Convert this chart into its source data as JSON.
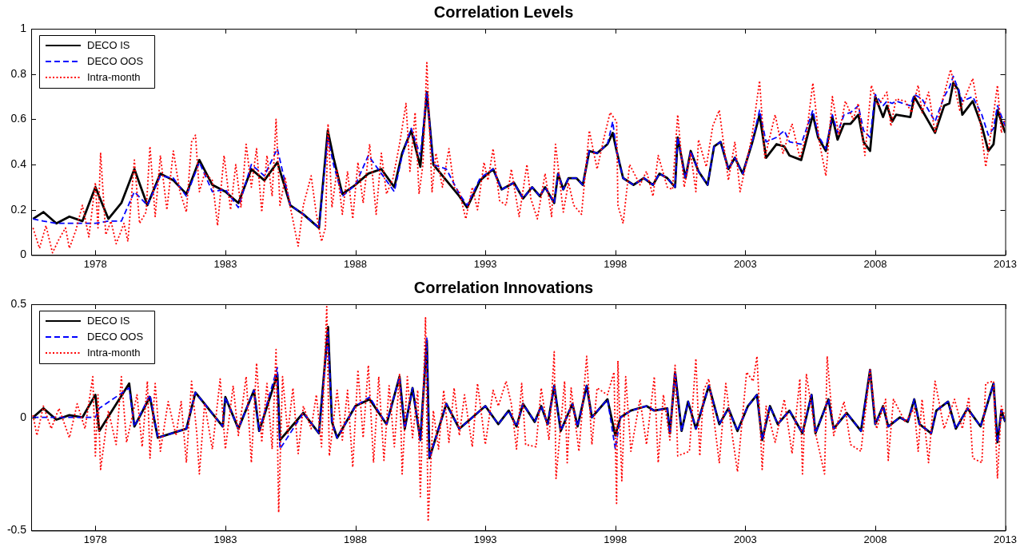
{
  "chart_data": [
    {
      "type": "line",
      "title": "Correlation Levels",
      "legend": "top left",
      "xlim": [
        1975.53,
        2013
      ],
      "xticks": [
        1978,
        1983,
        1988,
        1993,
        1998,
        2003,
        2008,
        2013
      ],
      "ylim": [
        0,
        1
      ],
      "yticks": [
        0,
        0.2,
        0.4,
        0.6,
        0.8,
        1
      ],
      "x": [
        1975.6,
        1976.0,
        1976.5,
        1977.0,
        1977.5,
        1978.0,
        1978.5,
        1979.0,
        1979.5,
        1980.0,
        1980.5,
        1981.0,
        1981.5,
        1982.0,
        1982.5,
        1983.0,
        1983.5,
        1984.0,
        1984.5,
        1985.0,
        1985.5,
        1986.0,
        1986.6,
        1986.94,
        1987.16,
        1987.5,
        1988.0,
        1988.5,
        1989.0,
        1989.5,
        1989.8,
        1990.15,
        1990.5,
        1990.75,
        1991.0,
        1991.5,
        1992.0,
        1992.3,
        1992.8,
        1993.3,
        1993.63,
        1994.1,
        1994.45,
        1994.8,
        1995.1,
        1995.3,
        1995.65,
        1995.8,
        1996.0,
        1996.2,
        1996.5,
        1996.75,
        1997.0,
        1997.3,
        1997.7,
        1997.9,
        1998.05,
        1998.3,
        1998.7,
        1999.1,
        1999.45,
        1999.7,
        2000.0,
        2000.3,
        2000.4,
        2000.7,
        2000.9,
        2001.2,
        2001.55,
        2001.8,
        2002.05,
        2002.35,
        2002.6,
        2002.9,
        2003.25,
        2003.55,
        2003.8,
        2004.2,
        2004.5,
        2004.7,
        2005.15,
        2005.6,
        2005.8,
        2006.1,
        2006.35,
        2006.55,
        2006.8,
        2007.05,
        2007.35,
        2007.55,
        2007.8,
        2008.0,
        2008.3,
        2008.45,
        2008.65,
        2008.8,
        2009.35,
        2009.5,
        2009.8,
        2010.3,
        2010.65,
        2010.85,
        2011.0,
        2011.2,
        2011.35,
        2011.75,
        2012.1,
        2012.35,
        2012.55,
        2012.7,
        2013.0
      ],
      "series": [
        {
          "name": "DECO IS",
          "color": "#000000",
          "line_style": "solid",
          "values": [
            0.16,
            0.19,
            0.14,
            0.17,
            0.15,
            0.3,
            0.16,
            0.23,
            0.38,
            0.22,
            0.36,
            0.33,
            0.27,
            0.42,
            0.31,
            0.28,
            0.23,
            0.38,
            0.33,
            0.41,
            0.22,
            0.18,
            0.12,
            0.55,
            0.43,
            0.27,
            0.31,
            0.36,
            0.38,
            0.3,
            0.45,
            0.55,
            0.39,
            0.72,
            0.4,
            0.33,
            0.26,
            0.21,
            0.33,
            0.38,
            0.29,
            0.32,
            0.25,
            0.3,
            0.26,
            0.3,
            0.23,
            0.36,
            0.29,
            0.34,
            0.34,
            0.31,
            0.46,
            0.45,
            0.49,
            0.54,
            0.46,
            0.34,
            0.31,
            0.34,
            0.31,
            0.36,
            0.34,
            0.3,
            0.52,
            0.34,
            0.46,
            0.37,
            0.31,
            0.48,
            0.5,
            0.38,
            0.43,
            0.36,
            0.49,
            0.62,
            0.43,
            0.49,
            0.48,
            0.44,
            0.42,
            0.62,
            0.52,
            0.46,
            0.61,
            0.51,
            0.58,
            0.58,
            0.62,
            0.5,
            0.46,
            0.7,
            0.61,
            0.66,
            0.59,
            0.62,
            0.61,
            0.7,
            0.64,
            0.54,
            0.66,
            0.67,
            0.76,
            0.73,
            0.62,
            0.68,
            0.57,
            0.46,
            0.49,
            0.64,
            0.54
          ]
        },
        {
          "name": "DECO OOS",
          "color": "#0000ff",
          "line_style": "dashed",
          "values": [
            0.16,
            0.15,
            0.14,
            0.14,
            0.14,
            0.14,
            0.15,
            0.15,
            0.28,
            0.22,
            0.35,
            0.34,
            0.26,
            0.41,
            0.28,
            0.29,
            0.21,
            0.4,
            0.35,
            0.47,
            0.22,
            0.18,
            0.12,
            0.52,
            0.4,
            0.26,
            0.31,
            0.44,
            0.36,
            0.28,
            0.44,
            0.56,
            0.44,
            0.72,
            0.4,
            0.38,
            0.27,
            0.22,
            0.34,
            0.38,
            0.29,
            0.32,
            0.25,
            0.3,
            0.26,
            0.3,
            0.23,
            0.36,
            0.29,
            0.34,
            0.34,
            0.31,
            0.46,
            0.45,
            0.49,
            0.59,
            0.46,
            0.34,
            0.31,
            0.34,
            0.31,
            0.36,
            0.34,
            0.3,
            0.52,
            0.34,
            0.46,
            0.37,
            0.31,
            0.48,
            0.5,
            0.38,
            0.43,
            0.36,
            0.49,
            0.64,
            0.5,
            0.52,
            0.55,
            0.5,
            0.49,
            0.64,
            0.53,
            0.47,
            0.62,
            0.54,
            0.62,
            0.63,
            0.66,
            0.55,
            0.52,
            0.71,
            0.66,
            0.68,
            0.67,
            0.68,
            0.66,
            0.71,
            0.69,
            0.59,
            0.7,
            0.74,
            0.79,
            0.73,
            0.68,
            0.7,
            0.62,
            0.53,
            0.56,
            0.66,
            0.57
          ]
        },
        {
          "name": "Intra-month",
          "color": "#ff0000",
          "line_style": "dotted",
          "x": [
            1975.6,
            1975.85,
            1976.1,
            1976.35,
            1976.6,
            1976.85,
            1977.0,
            1977.25,
            1977.5,
            1977.75,
            1978.0,
            1978.1,
            1978.2,
            1978.4,
            1978.6,
            1978.8,
            1979.1,
            1979.25,
            1979.5,
            1979.7,
            1979.95,
            1980.1,
            1980.3,
            1980.5,
            1980.75,
            1981.0,
            1981.25,
            1981.5,
            1981.7,
            1981.85,
            1982.0,
            1982.2,
            1982.5,
            1982.7,
            1982.95,
            1983.2,
            1983.4,
            1983.6,
            1983.8,
            1984.0,
            1984.2,
            1984.4,
            1984.6,
            1984.8,
            1984.95,
            1985.1,
            1985.3,
            1985.5,
            1985.8,
            1986.0,
            1986.3,
            1986.5,
            1986.7,
            1986.85,
            1986.95,
            1987.1,
            1987.3,
            1987.5,
            1987.7,
            1987.9,
            1988.1,
            1988.3,
            1988.55,
            1988.8,
            1989.0,
            1989.2,
            1989.45,
            1989.7,
            1989.95,
            1990.1,
            1990.3,
            1990.45,
            1990.6,
            1990.75,
            1990.95,
            1991.1,
            1991.35,
            1991.6,
            1991.8,
            1992.0,
            1992.25,
            1992.5,
            1992.7,
            1992.95,
            1993.1,
            1993.3,
            1993.55,
            1993.8,
            1994.0,
            1994.3,
            1994.6,
            1994.75,
            1995.0,
            1995.3,
            1995.55,
            1995.7,
            1996.0,
            1996.2,
            1996.4,
            1996.7,
            1997.0,
            1997.3,
            1997.55,
            1997.8,
            1998.05,
            1998.1,
            1998.3,
            1998.55,
            1998.95,
            1999.2,
            1999.45,
            1999.65,
            2000.0,
            2000.2,
            2000.4,
            2000.65,
            2000.9,
            2001.1,
            2001.2,
            2001.5,
            2001.75,
            2002.0,
            2002.35,
            2002.6,
            2002.8,
            2003.25,
            2003.55,
            2003.75,
            2004.15,
            2004.45,
            2004.8,
            2005.1,
            2005.35,
            2005.6,
            2005.85,
            2006.1,
            2006.35,
            2006.6,
            2006.85,
            2007.15,
            2007.35,
            2007.6,
            2007.85,
            2008.1,
            2008.45,
            2008.6,
            2008.8,
            2009.15,
            2009.4,
            2009.65,
            2009.8,
            2010.05,
            2010.3,
            2010.6,
            2010.9,
            2011.25,
            2011.5,
            2011.75,
            2012.0,
            2012.25,
            2012.45,
            2012.7,
            2012.85,
            2013.0
          ],
          "values": [
            0.12,
            0.03,
            0.13,
            0.01,
            0.07,
            0.12,
            0.03,
            0.11,
            0.22,
            0.08,
            0.32,
            0.12,
            0.45,
            0.09,
            0.15,
            0.05,
            0.14,
            0.06,
            0.42,
            0.14,
            0.19,
            0.48,
            0.17,
            0.44,
            0.2,
            0.46,
            0.28,
            0.19,
            0.5,
            0.53,
            0.28,
            0.36,
            0.33,
            0.13,
            0.44,
            0.2,
            0.4,
            0.21,
            0.49,
            0.3,
            0.47,
            0.19,
            0.44,
            0.26,
            0.6,
            0.22,
            0.34,
            0.21,
            0.04,
            0.22,
            0.35,
            0.18,
            0.06,
            0.12,
            0.58,
            0.21,
            0.38,
            0.18,
            0.37,
            0.16,
            0.41,
            0.23,
            0.49,
            0.18,
            0.45,
            0.27,
            0.34,
            0.49,
            0.67,
            0.37,
            0.63,
            0.27,
            0.4,
            0.85,
            0.28,
            0.45,
            0.3,
            0.47,
            0.3,
            0.28,
            0.16,
            0.3,
            0.2,
            0.41,
            0.33,
            0.47,
            0.24,
            0.22,
            0.38,
            0.17,
            0.4,
            0.25,
            0.16,
            0.36,
            0.17,
            0.49,
            0.19,
            0.32,
            0.22,
            0.18,
            0.55,
            0.38,
            0.51,
            0.63,
            0.59,
            0.22,
            0.14,
            0.4,
            0.31,
            0.37,
            0.26,
            0.44,
            0.3,
            0.29,
            0.62,
            0.3,
            0.45,
            0.28,
            0.51,
            0.39,
            0.57,
            0.64,
            0.33,
            0.5,
            0.28,
            0.52,
            0.77,
            0.43,
            0.62,
            0.45,
            0.58,
            0.43,
            0.53,
            0.76,
            0.5,
            0.35,
            0.7,
            0.53,
            0.68,
            0.6,
            0.67,
            0.44,
            0.75,
            0.66,
            0.72,
            0.57,
            0.69,
            0.68,
            0.63,
            0.75,
            0.63,
            0.72,
            0.54,
            0.69,
            0.82,
            0.64,
            0.71,
            0.78,
            0.62,
            0.39,
            0.54,
            0.75,
            0.54,
            0.6
          ]
        }
      ]
    },
    {
      "type": "line",
      "title": "Correlation Innovations",
      "legend": "top left",
      "xlim": [
        1975.53,
        2013
      ],
      "xticks": [
        1978,
        1983,
        1988,
        1993,
        1998,
        2003,
        2008,
        2013
      ],
      "ylim": [
        -0.5,
        0.5
      ],
      "yticks": [
        -0.5,
        0,
        0.5
      ],
      "x": [
        1975.6,
        1976.0,
        1976.5,
        1977.0,
        1977.5,
        1978.0,
        1978.15,
        1979.3,
        1979.5,
        1980.1,
        1980.4,
        1981.5,
        1981.85,
        1982.9,
        1983.0,
        1983.5,
        1984.1,
        1984.3,
        1985.0,
        1985.1,
        1986.0,
        1986.6,
        1986.95,
        1987.1,
        1987.3,
        1988.0,
        1988.55,
        1989.2,
        1989.7,
        1989.9,
        1990.2,
        1990.5,
        1990.75,
        1990.85,
        1991.5,
        1992.0,
        1992.5,
        1993.0,
        1993.5,
        1993.9,
        1994.2,
        1994.45,
        1994.9,
        1995.15,
        1995.4,
        1995.65,
        1995.9,
        1996.35,
        1996.55,
        1996.9,
        1997.1,
        1997.7,
        1998.0,
        1998.2,
        1998.6,
        1999.2,
        1999.5,
        2000.0,
        2000.1,
        2000.3,
        2000.55,
        2000.8,
        2001.1,
        2001.6,
        2002.0,
        2002.35,
        2002.7,
        2003.1,
        2003.45,
        2003.65,
        2003.95,
        2004.25,
        2004.7,
        2005.2,
        2005.55,
        2005.7,
        2006.2,
        2006.4,
        2006.9,
        2007.45,
        2007.8,
        2008.0,
        2008.3,
        2008.5,
        2008.95,
        2009.25,
        2009.5,
        2009.7,
        2010.15,
        2010.35,
        2010.8,
        2011.1,
        2011.55,
        2012.05,
        2012.55,
        2012.7,
        2012.85,
        2013.0
      ],
      "series": [
        {
          "name": "DECO IS",
          "color": "#000000",
          "line_style": "solid",
          "values": [
            0.0,
            0.04,
            -0.01,
            0.01,
            0.0,
            0.1,
            -0.06,
            0.15,
            -0.04,
            0.09,
            -0.09,
            -0.05,
            0.11,
            -0.04,
            0.09,
            -0.05,
            0.12,
            -0.06,
            0.19,
            -0.1,
            0.02,
            -0.07,
            0.4,
            -0.02,
            -0.09,
            0.05,
            0.08,
            -0.03,
            0.18,
            -0.05,
            0.13,
            -0.1,
            0.34,
            -0.18,
            0.06,
            -0.05,
            0.0,
            0.05,
            -0.03,
            0.03,
            -0.04,
            0.06,
            -0.02,
            0.05,
            -0.03,
            0.14,
            -0.06,
            0.06,
            -0.04,
            0.14,
            0.0,
            0.08,
            -0.08,
            0.0,
            0.03,
            0.05,
            0.03,
            0.04,
            -0.07,
            0.2,
            -0.06,
            0.07,
            -0.05,
            0.14,
            -0.03,
            0.04,
            -0.06,
            0.05,
            0.1,
            -0.1,
            0.05,
            -0.03,
            0.03,
            -0.07,
            0.1,
            -0.07,
            0.08,
            -0.05,
            0.02,
            -0.06,
            0.21,
            -0.03,
            0.05,
            -0.04,
            0.0,
            -0.02,
            0.08,
            -0.03,
            -0.07,
            0.03,
            0.07,
            -0.05,
            0.04,
            -0.04,
            0.15,
            -0.11,
            0.03,
            -0.02
          ]
        },
        {
          "name": "DECO OOS",
          "color": "#0000ff",
          "line_style": "dashed",
          "values": [
            0.0,
            0.0,
            0.0,
            0.0,
            0.0,
            0.0,
            0.04,
            0.13,
            -0.04,
            0.1,
            -0.09,
            -0.05,
            0.11,
            -0.04,
            0.09,
            -0.05,
            0.12,
            -0.06,
            0.22,
            -0.14,
            0.02,
            -0.07,
            0.38,
            -0.02,
            -0.09,
            0.05,
            0.09,
            -0.03,
            0.18,
            -0.05,
            0.13,
            -0.1,
            0.35,
            -0.18,
            0.06,
            -0.05,
            0.0,
            0.05,
            -0.03,
            0.03,
            -0.04,
            0.06,
            -0.02,
            0.05,
            -0.03,
            0.14,
            -0.06,
            0.06,
            -0.04,
            0.14,
            0.0,
            0.08,
            -0.14,
            0.0,
            0.03,
            0.05,
            0.03,
            0.04,
            -0.07,
            0.2,
            -0.06,
            0.07,
            -0.05,
            0.14,
            -0.03,
            0.04,
            -0.06,
            0.05,
            0.1,
            -0.1,
            0.05,
            -0.03,
            0.03,
            -0.07,
            0.1,
            -0.07,
            0.08,
            -0.05,
            0.02,
            -0.06,
            0.21,
            -0.03,
            0.05,
            -0.04,
            0.0,
            -0.02,
            0.08,
            -0.03,
            -0.07,
            0.03,
            0.07,
            -0.05,
            0.04,
            -0.04,
            0.15,
            -0.11,
            0.03,
            -0.02
          ]
        },
        {
          "name": "Intra-month",
          "color": "#ff0000",
          "line_style": "dotted",
          "x": [
            1975.6,
            1975.75,
            1976.0,
            1976.3,
            1976.6,
            1977.0,
            1977.3,
            1977.6,
            1977.9,
            1978.0,
            1978.1,
            1978.2,
            1978.5,
            1978.8,
            1979.0,
            1979.2,
            1979.6,
            1979.8,
            1980.0,
            1980.1,
            1980.3,
            1980.5,
            1980.8,
            1981.1,
            1981.3,
            1981.5,
            1981.7,
            1981.9,
            1982.0,
            1982.2,
            1982.5,
            1982.8,
            1983.0,
            1983.3,
            1983.5,
            1983.8,
            1984.0,
            1984.2,
            1984.4,
            1984.6,
            1984.8,
            1984.95,
            1985.05,
            1985.2,
            1985.4,
            1985.6,
            1985.8,
            1986.0,
            1986.3,
            1986.5,
            1986.7,
            1986.9,
            1987.0,
            1987.3,
            1987.5,
            1987.7,
            1987.9,
            1988.1,
            1988.3,
            1988.5,
            1988.7,
            1988.9,
            1989.1,
            1989.3,
            1989.5,
            1989.7,
            1989.8,
            1990.0,
            1990.2,
            1990.4,
            1990.5,
            1990.7,
            1990.8,
            1991.0,
            1991.2,
            1991.4,
            1991.6,
            1991.8,
            1992.0,
            1992.2,
            1992.5,
            1992.7,
            1993.0,
            1993.3,
            1993.5,
            1993.8,
            1994.0,
            1994.2,
            1994.4,
            1994.55,
            1994.95,
            1995.15,
            1995.45,
            1995.65,
            1995.72,
            1996.05,
            1996.15,
            1996.3,
            1996.6,
            1996.9,
            1997.1,
            1997.3,
            1997.7,
            1997.95,
            1998.05,
            1998.1,
            1998.25,
            1998.4,
            1998.6,
            1998.95,
            1999.2,
            1999.5,
            1999.65,
            1999.85,
            2000.1,
            2000.3,
            2000.4,
            2000.85,
            2001.1,
            2001.25,
            2001.4,
            2001.6,
            2002.0,
            2002.25,
            2002.5,
            2002.7,
            2003.05,
            2003.3,
            2003.45,
            2003.65,
            2003.8,
            2004.15,
            2004.5,
            2004.8,
            2005.1,
            2005.2,
            2005.35,
            2005.7,
            2006.05,
            2006.15,
            2006.4,
            2006.8,
            2007.05,
            2007.45,
            2007.8,
            2008.05,
            2008.4,
            2008.5,
            2008.7,
            2009.15,
            2009.5,
            2009.65,
            2009.8,
            2010.05,
            2010.3,
            2010.65,
            2011.05,
            2011.35,
            2011.6,
            2011.75,
            2012.1,
            2012.25,
            2012.55,
            2012.7,
            2012.85,
            2013.0
          ],
          "values": [
            0.01,
            -0.08,
            0.05,
            -0.05,
            0.04,
            -0.09,
            0.06,
            -0.05,
            0.18,
            -0.17,
            0.1,
            -0.23,
            0.03,
            -0.12,
            0.18,
            -0.11,
            0.1,
            -0.13,
            0.16,
            -0.18,
            0.15,
            -0.15,
            0.07,
            -0.08,
            0.07,
            -0.2,
            0.16,
            -0.07,
            -0.25,
            0.06,
            -0.14,
            0.17,
            -0.14,
            0.14,
            -0.08,
            0.18,
            -0.2,
            0.24,
            -0.11,
            0.15,
            -0.14,
            0.3,
            -0.42,
            0.18,
            -0.07,
            0.13,
            -0.16,
            0.05,
            -0.05,
            0.1,
            -0.13,
            0.49,
            -0.17,
            0.12,
            -0.1,
            0.12,
            -0.22,
            0.21,
            -0.09,
            0.23,
            -0.2,
            0.18,
            -0.19,
            0.14,
            -0.13,
            0.19,
            -0.25,
            0.18,
            -0.09,
            0.12,
            -0.35,
            0.44,
            -0.46,
            0.03,
            -0.14,
            0.12,
            -0.11,
            0.13,
            -0.08,
            0.1,
            -0.13,
            0.15,
            -0.12,
            0.12,
            0.05,
            0.16,
            0.06,
            -0.14,
            0.15,
            -0.12,
            -0.13,
            0.13,
            -0.1,
            0.29,
            -0.27,
            0.16,
            -0.2,
            0.13,
            -0.15,
            0.27,
            -0.12,
            0.13,
            0.1,
            0.2,
            -0.38,
            0.25,
            -0.28,
            0.18,
            -0.15,
            0.08,
            -0.12,
            0.18,
            -0.2,
            0.1,
            -0.1,
            0.23,
            -0.17,
            -0.15,
            0.26,
            -0.17,
            0.12,
            0.17,
            -0.2,
            0.15,
            -0.08,
            -0.24,
            0.2,
            0.16,
            0.27,
            -0.23,
            0.05,
            -0.11,
            0.08,
            -0.16,
            0.17,
            -0.25,
            0.19,
            -0.07,
            -0.25,
            0.27,
            -0.08,
            0.07,
            -0.12,
            -0.15,
            0.21,
            -0.05,
            0.08,
            -0.19,
            0.08,
            -0.02,
            0.04,
            -0.15,
            0.08,
            -0.2,
            0.16,
            -0.05,
            0.08,
            -0.05,
            0.09,
            -0.18,
            -0.2,
            0.15,
            0.16,
            -0.27,
            0.05,
            0.0
          ]
        }
      ]
    }
  ]
}
